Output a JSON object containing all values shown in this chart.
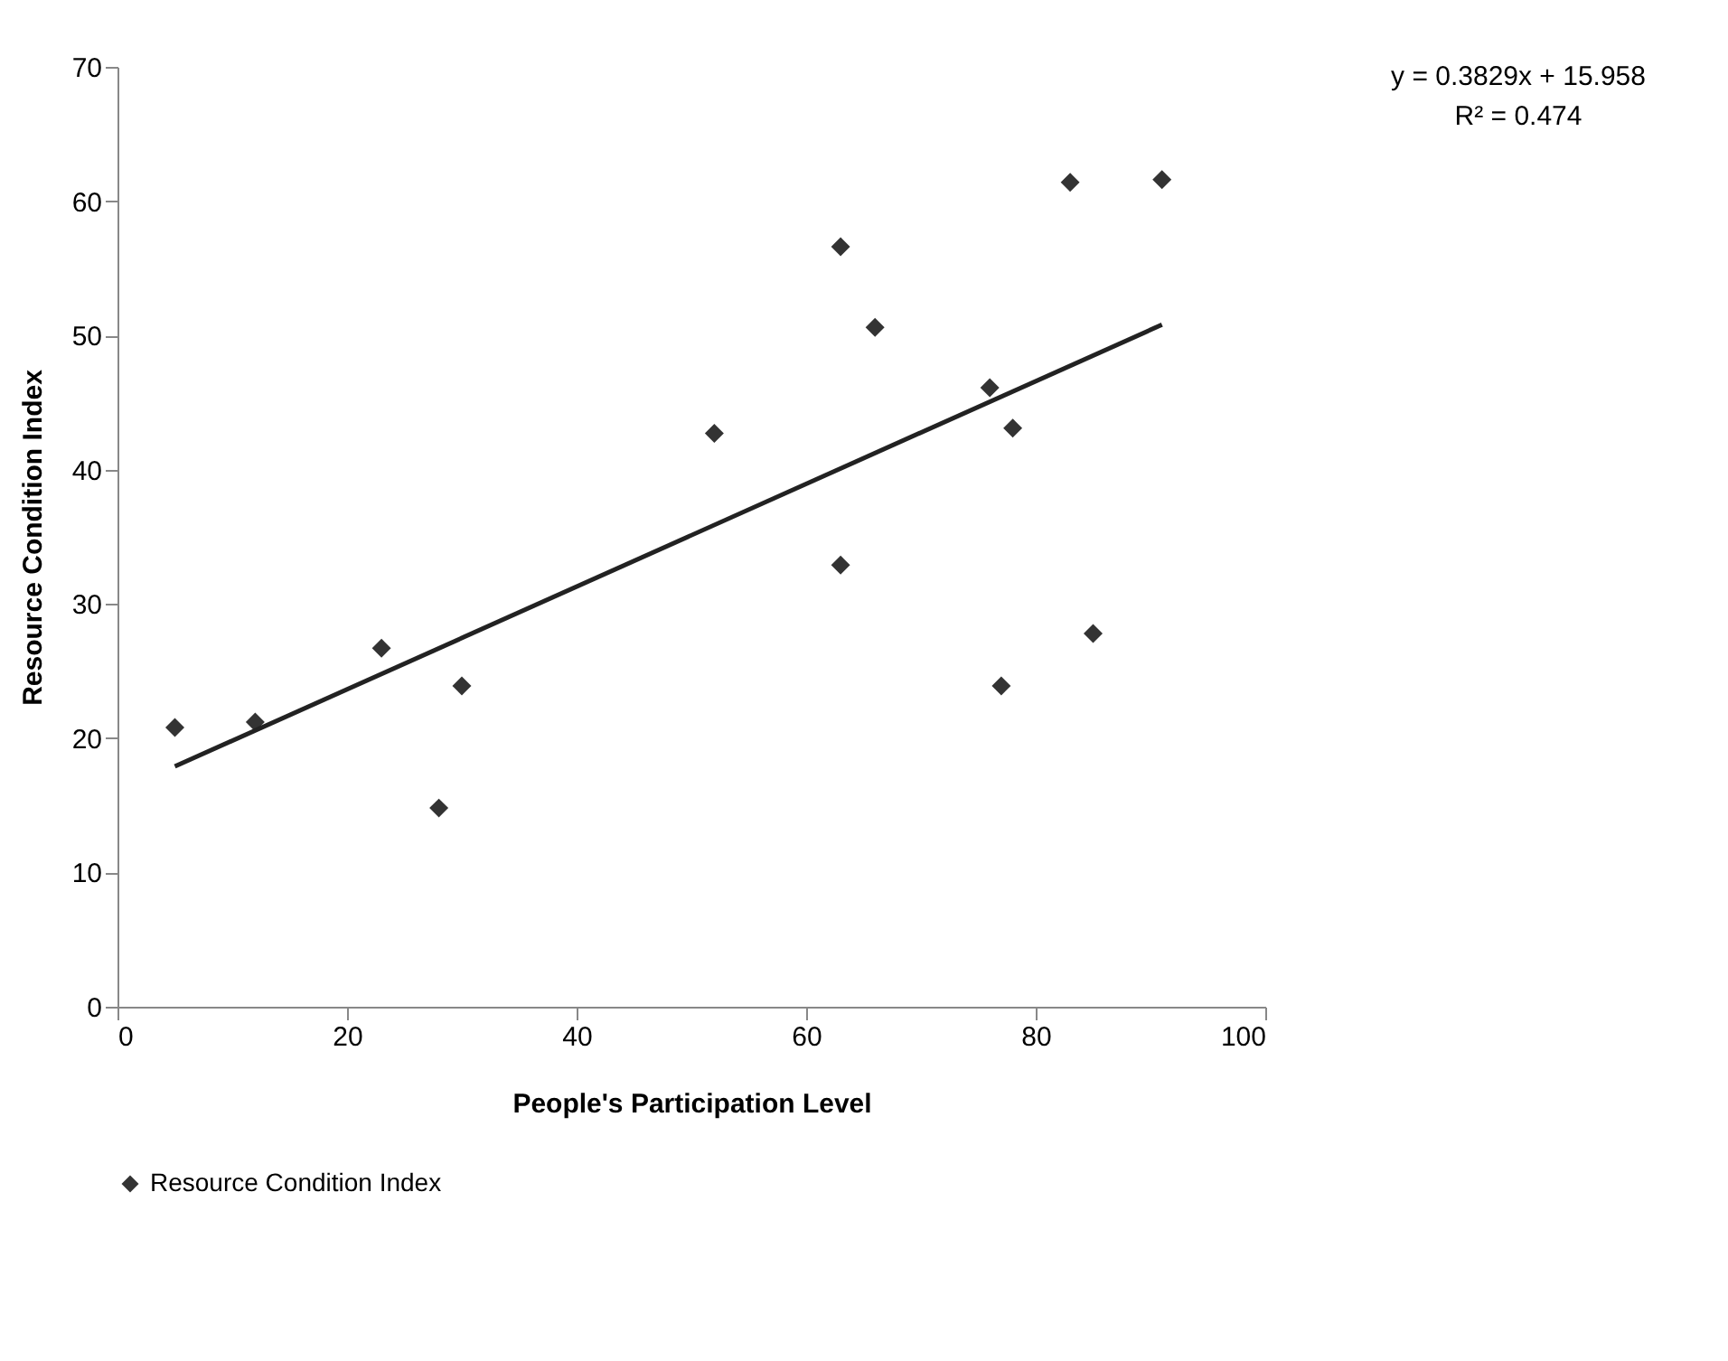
{
  "chart_data": {
    "type": "scatter",
    "xlabel": "People's Participation Level",
    "ylabel": "Resource Condition Index",
    "xlim": [
      0,
      100
    ],
    "xticks": [
      0,
      20,
      40,
      60,
      80,
      100
    ],
    "ylim": [
      0,
      70
    ],
    "yticks": [
      0,
      10,
      20,
      30,
      40,
      50,
      60,
      70
    ],
    "grid": false,
    "legend": "bottom",
    "series": [
      {
        "name": "Resource Condition Index",
        "color": "#333333",
        "marker": "diamond",
        "x": [
          5,
          12,
          23,
          28,
          30,
          52,
          63,
          63,
          66,
          76,
          77,
          78,
          83,
          85,
          91
        ],
        "values": [
          20.8,
          21.2,
          26.7,
          14.8,
          23.9,
          42.7,
          56.6,
          32.9,
          50.6,
          46.1,
          23.9,
          43.1,
          61.4,
          27.8,
          61.6
        ]
      },
      {
        "color": "#222222",
        "type": "line",
        "marker": "none",
        "x": [
          5,
          91
        ],
        "values": [
          17.9,
          50.8
        ]
      }
    ],
    "annotations": [
      "y = 0.3829x + 15.958",
      "R² = 0.474"
    ]
  }
}
